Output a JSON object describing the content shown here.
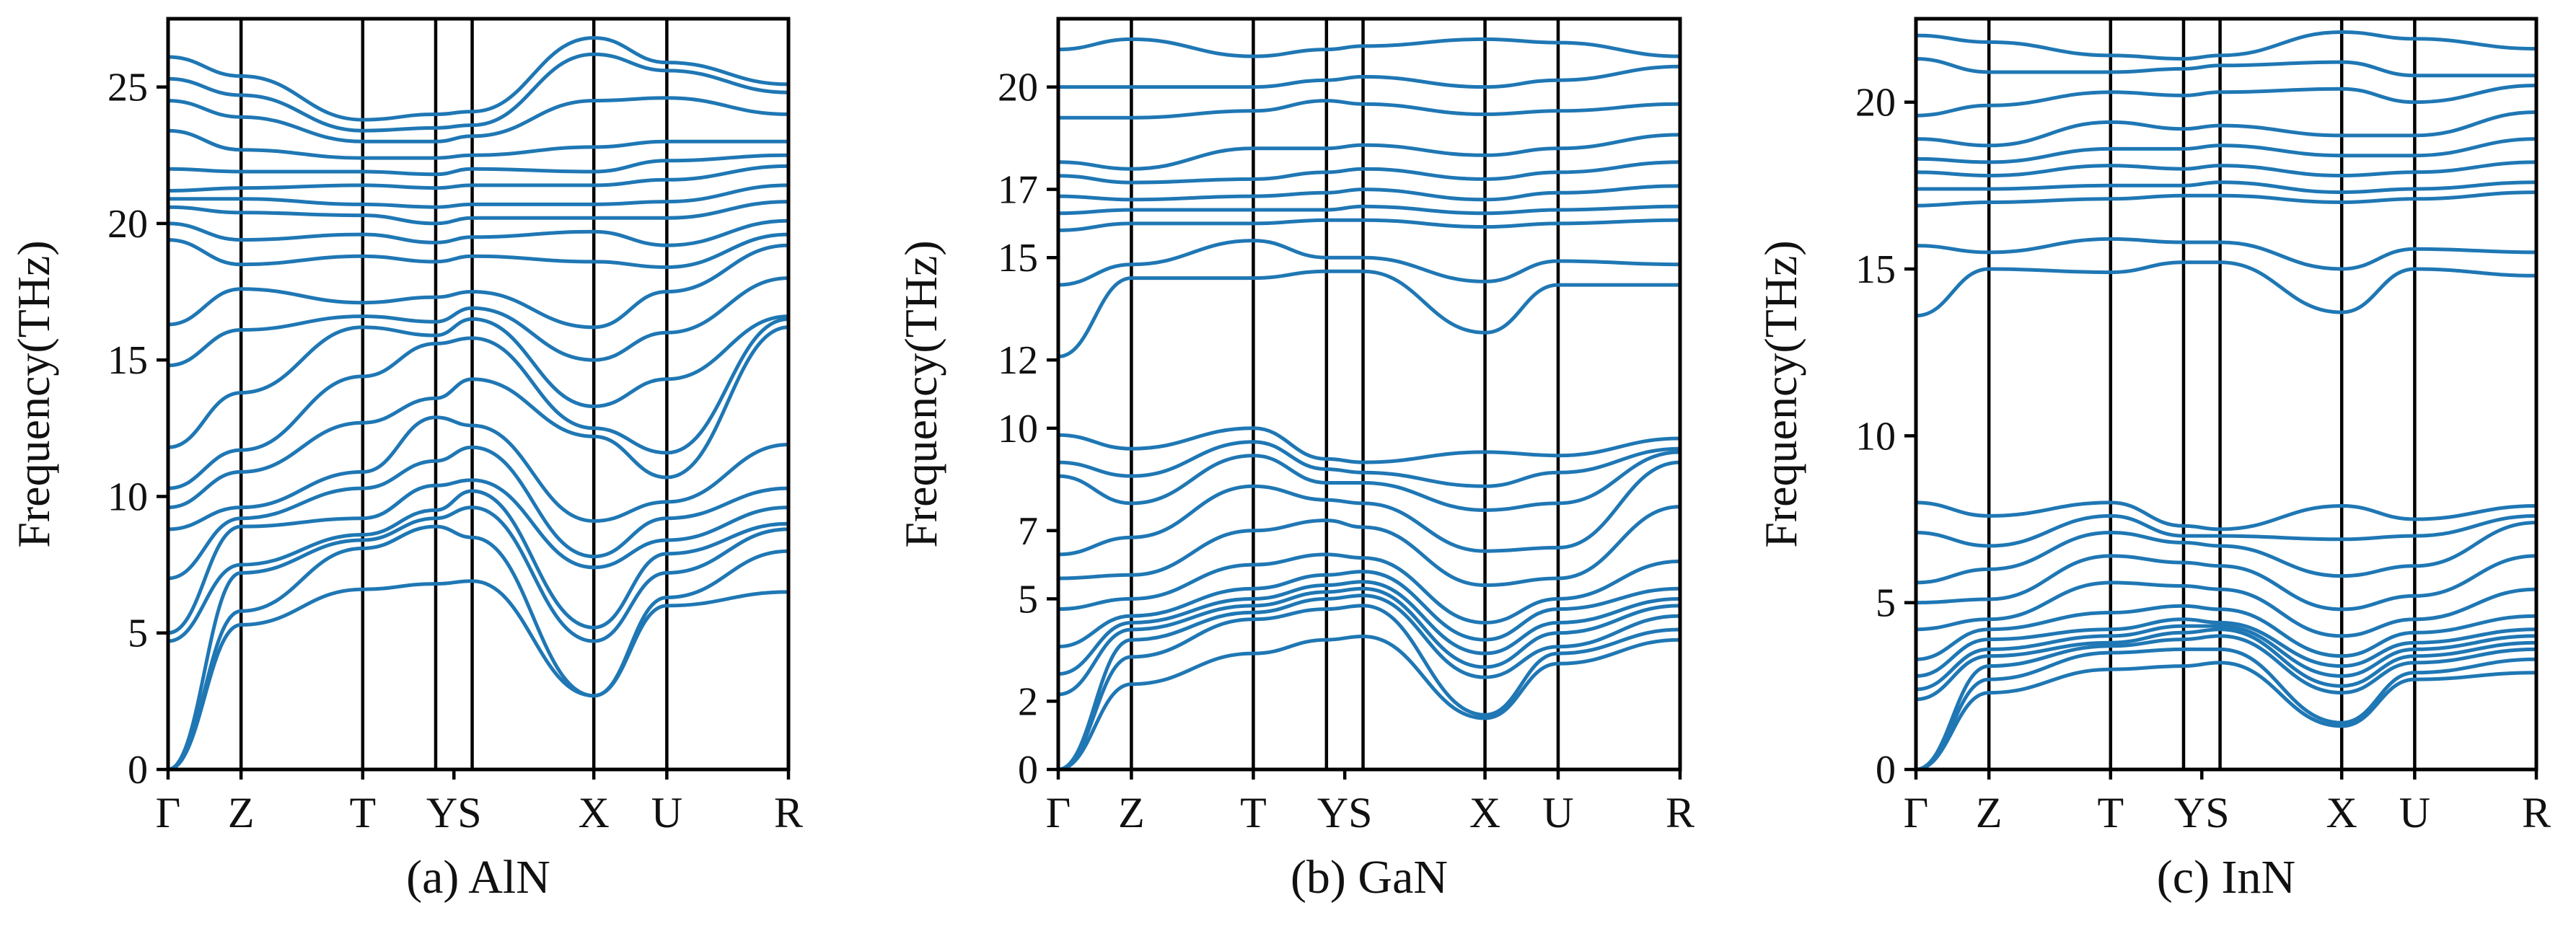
{
  "figure": {
    "line_color": "#1f77b4",
    "axis_color": "#000000"
  },
  "chart_data": [
    {
      "type": "line",
      "caption": "(a) AlN",
      "ylabel": "Frequency(THz)",
      "ylim": [
        0,
        27.5
      ],
      "yticks": [
        0,
        5,
        10,
        15,
        20,
        25
      ],
      "high_symmetry_points": [
        "Γ",
        "Z",
        "T",
        "Y",
        "S",
        "X",
        "U",
        "R"
      ],
      "path_positions": [
        0.0,
        0.6,
        1.6,
        2.2,
        2.5,
        3.5,
        4.1,
        5.1
      ],
      "tick_labels": [
        "Γ",
        "Z",
        "T",
        "YS",
        "X",
        "U",
        "R"
      ],
      "tick_label_positions": [
        0.0,
        0.6,
        1.6,
        2.35,
        3.5,
        4.1,
        5.1
      ],
      "grid": false,
      "series": [
        {
          "values": [
            0.0,
            5.3,
            6.6,
            6.8,
            6.9,
            2.7,
            6.0,
            6.5
          ]
        },
        {
          "values": [
            0.0,
            5.8,
            8.1,
            8.9,
            8.5,
            2.7,
            6.3,
            8.0
          ]
        },
        {
          "values": [
            0.0,
            7.2,
            8.4,
            9.2,
            9.6,
            4.7,
            7.2,
            8.8
          ]
        },
        {
          "values": [
            4.7,
            7.5,
            8.6,
            9.5,
            10.2,
            5.2,
            7.9,
            9.0
          ]
        },
        {
          "values": [
            5.0,
            8.9,
            9.2,
            10.4,
            10.6,
            7.4,
            8.4,
            9.6
          ]
        },
        {
          "values": [
            7.0,
            9.2,
            10.3,
            11.3,
            11.8,
            7.8,
            9.2,
            10.3
          ]
        },
        {
          "values": [
            8.8,
            9.6,
            10.9,
            12.9,
            12.6,
            9.1,
            9.8,
            11.9
          ]
        },
        {
          "values": [
            9.6,
            10.9,
            12.7,
            13.6,
            14.3,
            12.2,
            10.7,
            16.2
          ]
        },
        {
          "values": [
            10.3,
            11.7,
            14.4,
            15.6,
            15.8,
            12.5,
            11.6,
            16.5
          ]
        },
        {
          "values": [
            11.8,
            13.8,
            16.2,
            15.9,
            16.5,
            13.3,
            14.3,
            16.6
          ]
        },
        {
          "values": [
            14.8,
            16.1,
            16.6,
            16.4,
            16.9,
            15.0,
            16.0,
            18.0
          ]
        },
        {
          "values": [
            16.3,
            17.6,
            17.1,
            17.3,
            17.5,
            16.2,
            17.5,
            19.2
          ]
        },
        {
          "values": [
            19.4,
            18.5,
            18.8,
            18.6,
            18.8,
            18.6,
            18.4,
            19.6
          ]
        },
        {
          "values": [
            20.0,
            19.4,
            19.6,
            19.3,
            19.5,
            19.7,
            19.2,
            20.1
          ]
        },
        {
          "values": [
            20.6,
            20.4,
            20.3,
            20.0,
            20.2,
            20.2,
            20.2,
            20.8
          ]
        },
        {
          "values": [
            20.9,
            20.9,
            20.7,
            20.6,
            20.7,
            20.7,
            20.8,
            21.4
          ]
        },
        {
          "values": [
            21.2,
            21.3,
            21.4,
            21.3,
            21.4,
            21.4,
            21.6,
            22.1
          ]
        },
        {
          "values": [
            22.0,
            21.9,
            21.9,
            21.8,
            22.0,
            21.9,
            22.3,
            22.5
          ]
        },
        {
          "values": [
            23.4,
            22.7,
            22.4,
            22.4,
            22.5,
            22.8,
            23.0,
            23.0
          ]
        },
        {
          "values": [
            24.5,
            23.9,
            23.0,
            23.0,
            23.2,
            24.5,
            24.6,
            24.0
          ]
        },
        {
          "values": [
            25.3,
            24.7,
            23.4,
            23.5,
            23.6,
            26.2,
            25.6,
            24.8
          ]
        },
        {
          "values": [
            26.1,
            25.4,
            23.8,
            24.0,
            24.1,
            26.8,
            25.9,
            25.1
          ]
        }
      ]
    },
    {
      "type": "line",
      "caption": "(b) GaN",
      "ylabel": "Frequency(THz)",
      "ylim": [
        0,
        22.0
      ],
      "yticks": [
        0,
        2,
        5,
        7,
        10,
        12,
        15,
        17,
        20
      ],
      "high_symmetry_points": [
        "Γ",
        "Z",
        "T",
        "Y",
        "S",
        "X",
        "U",
        "R"
      ],
      "path_positions": [
        0.0,
        0.6,
        1.6,
        2.2,
        2.5,
        3.5,
        4.1,
        5.1
      ],
      "tick_labels": [
        "Γ",
        "Z",
        "T",
        "YS",
        "X",
        "U",
        "R"
      ],
      "tick_label_positions": [
        0.0,
        0.6,
        1.6,
        2.35,
        3.5,
        4.1,
        5.1
      ],
      "grid": false,
      "series": [
        {
          "values": [
            0.0,
            2.5,
            3.4,
            3.8,
            3.9,
            1.5,
            3.1,
            3.8
          ]
        },
        {
          "values": [
            0.0,
            3.3,
            4.4,
            4.7,
            4.8,
            1.6,
            3.4,
            4.1
          ]
        },
        {
          "values": [
            0.0,
            3.8,
            4.6,
            5.0,
            5.1,
            2.7,
            3.6,
            4.5
          ]
        },
        {
          "values": [
            2.2,
            4.1,
            4.8,
            5.2,
            5.3,
            3.0,
            4.0,
            4.8
          ]
        },
        {
          "values": [
            2.8,
            4.3,
            5.0,
            5.4,
            5.5,
            3.4,
            4.3,
            5.0
          ]
        },
        {
          "values": [
            3.6,
            4.5,
            5.3,
            5.7,
            5.8,
            3.8,
            4.7,
            5.3
          ]
        },
        {
          "values": [
            4.7,
            5.0,
            6.0,
            6.3,
            6.2,
            4.3,
            5.0,
            6.1
          ]
        },
        {
          "values": [
            5.6,
            5.7,
            7.0,
            7.3,
            7.1,
            5.4,
            5.6,
            7.7
          ]
        },
        {
          "values": [
            6.3,
            6.8,
            8.3,
            7.9,
            7.8,
            6.4,
            6.5,
            9.0
          ]
        },
        {
          "values": [
            8.6,
            7.8,
            9.2,
            8.4,
            8.4,
            7.6,
            7.8,
            9.3
          ]
        },
        {
          "values": [
            9.0,
            8.6,
            9.6,
            8.8,
            8.7,
            8.3,
            8.7,
            9.4
          ]
        },
        {
          "values": [
            9.8,
            9.4,
            10.0,
            9.1,
            9.0,
            9.3,
            9.2,
            9.7
          ]
        },
        {
          "values": [
            12.1,
            14.4,
            14.4,
            14.6,
            14.6,
            12.8,
            14.2,
            14.2
          ]
        },
        {
          "values": [
            14.2,
            14.8,
            15.5,
            15.0,
            15.0,
            14.3,
            14.9,
            14.8
          ]
        },
        {
          "values": [
            15.8,
            16.0,
            16.0,
            16.1,
            16.1,
            15.9,
            16.0,
            16.1
          ]
        },
        {
          "values": [
            16.3,
            16.4,
            16.4,
            16.4,
            16.5,
            16.3,
            16.4,
            16.5
          ]
        },
        {
          "values": [
            16.8,
            16.7,
            16.8,
            16.9,
            17.0,
            16.7,
            16.9,
            17.1
          ]
        },
        {
          "values": [
            17.4,
            17.2,
            17.3,
            17.5,
            17.6,
            17.3,
            17.5,
            17.8
          ]
        },
        {
          "values": [
            17.8,
            17.6,
            18.2,
            18.2,
            18.3,
            18.0,
            18.2,
            18.6
          ]
        },
        {
          "values": [
            19.1,
            19.1,
            19.3,
            19.6,
            19.5,
            19.2,
            19.3,
            19.5
          ]
        },
        {
          "values": [
            20.0,
            20.0,
            20.0,
            20.2,
            20.3,
            20.0,
            20.2,
            20.6
          ]
        },
        {
          "values": [
            21.1,
            21.4,
            20.9,
            21.1,
            21.2,
            21.4,
            21.3,
            20.9
          ]
        }
      ]
    },
    {
      "type": "line",
      "caption": "(c) InN",
      "ylabel": "Frequency(THz)",
      "ylim": [
        0,
        22.5
      ],
      "yticks": [
        0,
        5,
        10,
        15,
        20
      ],
      "high_symmetry_points": [
        "Γ",
        "Z",
        "T",
        "Y",
        "S",
        "X",
        "U",
        "R"
      ],
      "path_positions": [
        0.0,
        0.6,
        1.6,
        2.2,
        2.5,
        3.5,
        4.1,
        5.1
      ],
      "tick_labels": [
        "Γ",
        "Z",
        "T",
        "YS",
        "X",
        "U",
        "R"
      ],
      "tick_label_positions": [
        0.0,
        0.6,
        1.6,
        2.35,
        3.5,
        4.1,
        5.1
      ],
      "grid": false,
      "series": [
        {
          "values": [
            0.0,
            2.3,
            3.0,
            3.1,
            3.2,
            1.3,
            2.7,
            2.9
          ]
        },
        {
          "values": [
            0.0,
            2.7,
            3.5,
            3.6,
            3.6,
            1.4,
            2.9,
            3.3
          ]
        },
        {
          "values": [
            0.0,
            3.1,
            3.7,
            3.9,
            4.0,
            2.3,
            3.2,
            3.6
          ]
        },
        {
          "values": [
            2.1,
            3.4,
            3.8,
            4.1,
            4.2,
            2.5,
            3.4,
            3.8
          ]
        },
        {
          "values": [
            2.4,
            3.6,
            4.0,
            4.3,
            4.3,
            2.8,
            3.6,
            4.0
          ]
        },
        {
          "values": [
            2.8,
            3.9,
            4.2,
            4.5,
            4.4,
            3.1,
            3.8,
            4.2
          ]
        },
        {
          "values": [
            3.3,
            4.2,
            4.7,
            4.9,
            4.8,
            3.4,
            4.1,
            4.6
          ]
        },
        {
          "values": [
            4.2,
            4.5,
            5.6,
            5.5,
            5.4,
            4.0,
            4.5,
            5.4
          ]
        },
        {
          "values": [
            5.0,
            5.1,
            6.4,
            6.2,
            6.1,
            4.8,
            5.2,
            6.4
          ]
        },
        {
          "values": [
            5.6,
            6.0,
            7.1,
            6.8,
            6.7,
            5.8,
            6.1,
            7.4
          ]
        },
        {
          "values": [
            7.1,
            6.7,
            7.6,
            7.0,
            7.0,
            6.9,
            7.0,
            7.6
          ]
        },
        {
          "values": [
            8.0,
            7.6,
            8.0,
            7.3,
            7.2,
            7.9,
            7.5,
            7.9
          ]
        },
        {
          "values": [
            13.6,
            15.0,
            14.9,
            15.2,
            15.2,
            13.7,
            15.0,
            14.8
          ]
        },
        {
          "values": [
            15.7,
            15.5,
            15.9,
            15.8,
            15.8,
            15.0,
            15.6,
            15.5
          ]
        },
        {
          "values": [
            16.9,
            17.0,
            17.1,
            17.2,
            17.2,
            17.0,
            17.1,
            17.3
          ]
        },
        {
          "values": [
            17.4,
            17.4,
            17.5,
            17.5,
            17.6,
            17.3,
            17.4,
            17.6
          ]
        },
        {
          "values": [
            17.9,
            17.8,
            18.1,
            18.0,
            18.1,
            17.8,
            17.9,
            18.2
          ]
        },
        {
          "values": [
            18.3,
            18.2,
            18.6,
            18.6,
            18.7,
            18.4,
            18.4,
            18.9
          ]
        },
        {
          "values": [
            18.9,
            18.7,
            19.4,
            19.2,
            19.3,
            19.0,
            19.0,
            19.7
          ]
        },
        {
          "values": [
            19.6,
            19.9,
            20.3,
            20.2,
            20.3,
            20.4,
            20.0,
            20.5
          ]
        },
        {
          "values": [
            21.3,
            20.9,
            20.9,
            21.0,
            21.1,
            21.2,
            20.8,
            20.8
          ]
        },
        {
          "values": [
            22.0,
            21.8,
            21.4,
            21.3,
            21.4,
            22.1,
            21.9,
            21.6
          ]
        }
      ]
    }
  ]
}
